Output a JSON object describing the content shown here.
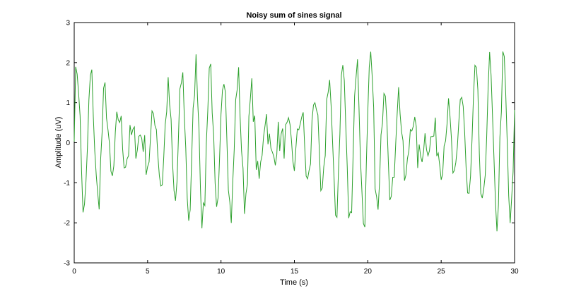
{
  "chart_data": {
    "type": "line",
    "title": "Noisy sum of sines signal",
    "xlabel": "Time (s)",
    "ylabel": "Amplitude (uV)",
    "xlim": [
      0,
      30
    ],
    "ylim": [
      -3,
      3
    ],
    "x_ticks": [
      "0",
      "5",
      "10",
      "15",
      "20",
      "25",
      "30"
    ],
    "y_ticks": [
      "3",
      "2",
      "1",
      "0",
      "-1",
      "-2",
      "-3"
    ],
    "grid": false,
    "legend": "none",
    "series": [
      {
        "color": "#2ca02c",
        "sample_rate_hz": 10,
        "components_hz": [
          1,
          1.1
        ],
        "envelope_period_s": 10,
        "amplitude_range": [
          -2.6,
          2.6
        ]
      }
    ]
  },
  "colors": {
    "line": "#2ca02c",
    "axes": "#000000",
    "background": "#ffffff"
  }
}
